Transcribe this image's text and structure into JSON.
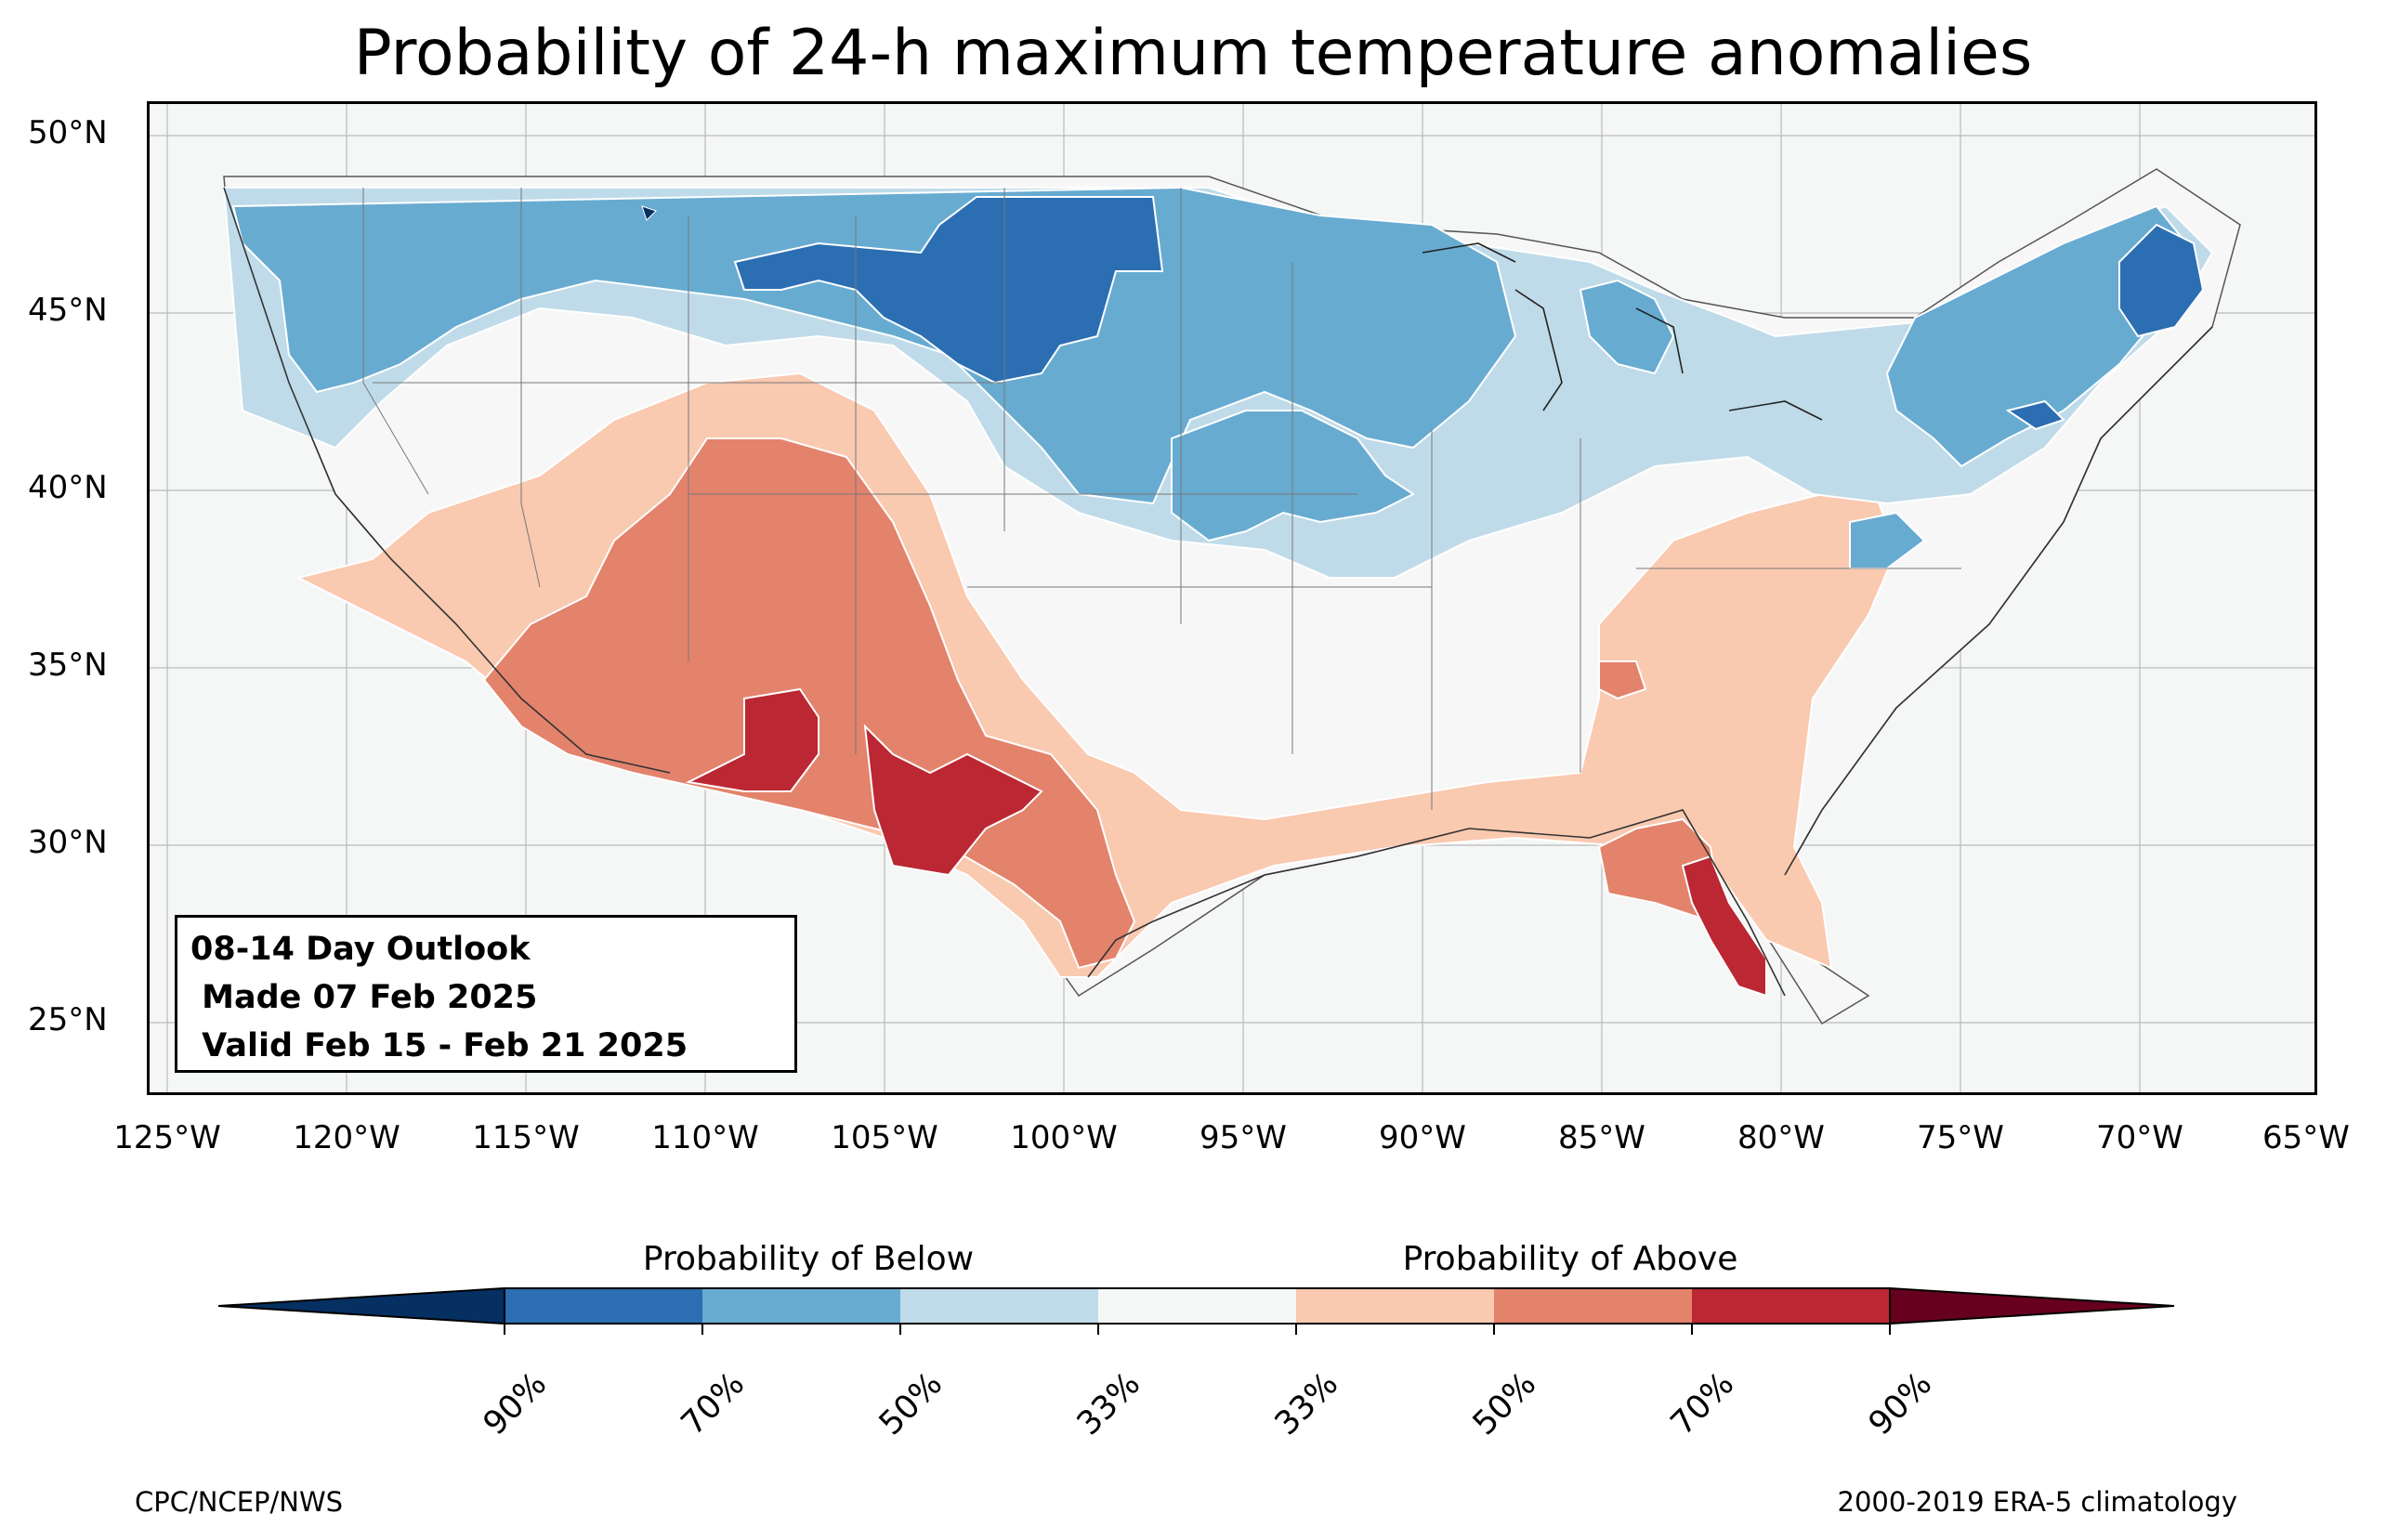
{
  "title": "Probability of 24-h maximum temperature anomalies",
  "map": {
    "extent": {
      "lon_min": -125.5,
      "lon_max": -65,
      "lat_min": 23,
      "lat_max": 51
    },
    "lat_ticks": [
      "50°N",
      "45°N",
      "40°N",
      "35°N",
      "30°N",
      "25°N"
    ],
    "lat_values": [
      50,
      45,
      40,
      35,
      30,
      25
    ],
    "lon_ticks": [
      "125°W",
      "120°W",
      "115°W",
      "110°W",
      "105°W",
      "100°W",
      "95°W",
      "90°W",
      "85°W",
      "80°W",
      "75°W",
      "70°W",
      "65°W"
    ],
    "lon_values": [
      -125,
      -120,
      -115,
      -110,
      -105,
      -100,
      -95,
      -90,
      -85,
      -80,
      -75,
      -70,
      -65
    ],
    "colors": {
      "ocean_bg": "#f5f6f6",
      "below_33": "#bfdbe9",
      "below_50": "#68abd1",
      "below_70": "#2b6eb2",
      "below_90": "#053061",
      "above_33": "#f9c9b0",
      "above_50": "#e3836c",
      "above_70": "#bb2733",
      "above_90": "#67001f"
    }
  },
  "outlook": {
    "line1": "08-14 Day Outlook",
    "line2": " Made 07 Feb 2025",
    "line3": " Valid Feb 15 - Feb 21 2025"
  },
  "colorbar": {
    "label_below": "Probability of Below",
    "label_above": "Probability of Above",
    "ticks": [
      "90%",
      "70%",
      "50%",
      "33%",
      "33%",
      "50%",
      "70%",
      "90%"
    ],
    "segments": [
      "#053061",
      "#2b6eb2",
      "#68abd1",
      "#bfdbe9",
      "#f5f6f6",
      "#f9c9b0",
      "#e3836c",
      "#bb2733",
      "#67001f"
    ]
  },
  "credits": {
    "left": "CPC/NCEP/NWS",
    "right": "2000-2019 ERA-5 climatology"
  }
}
